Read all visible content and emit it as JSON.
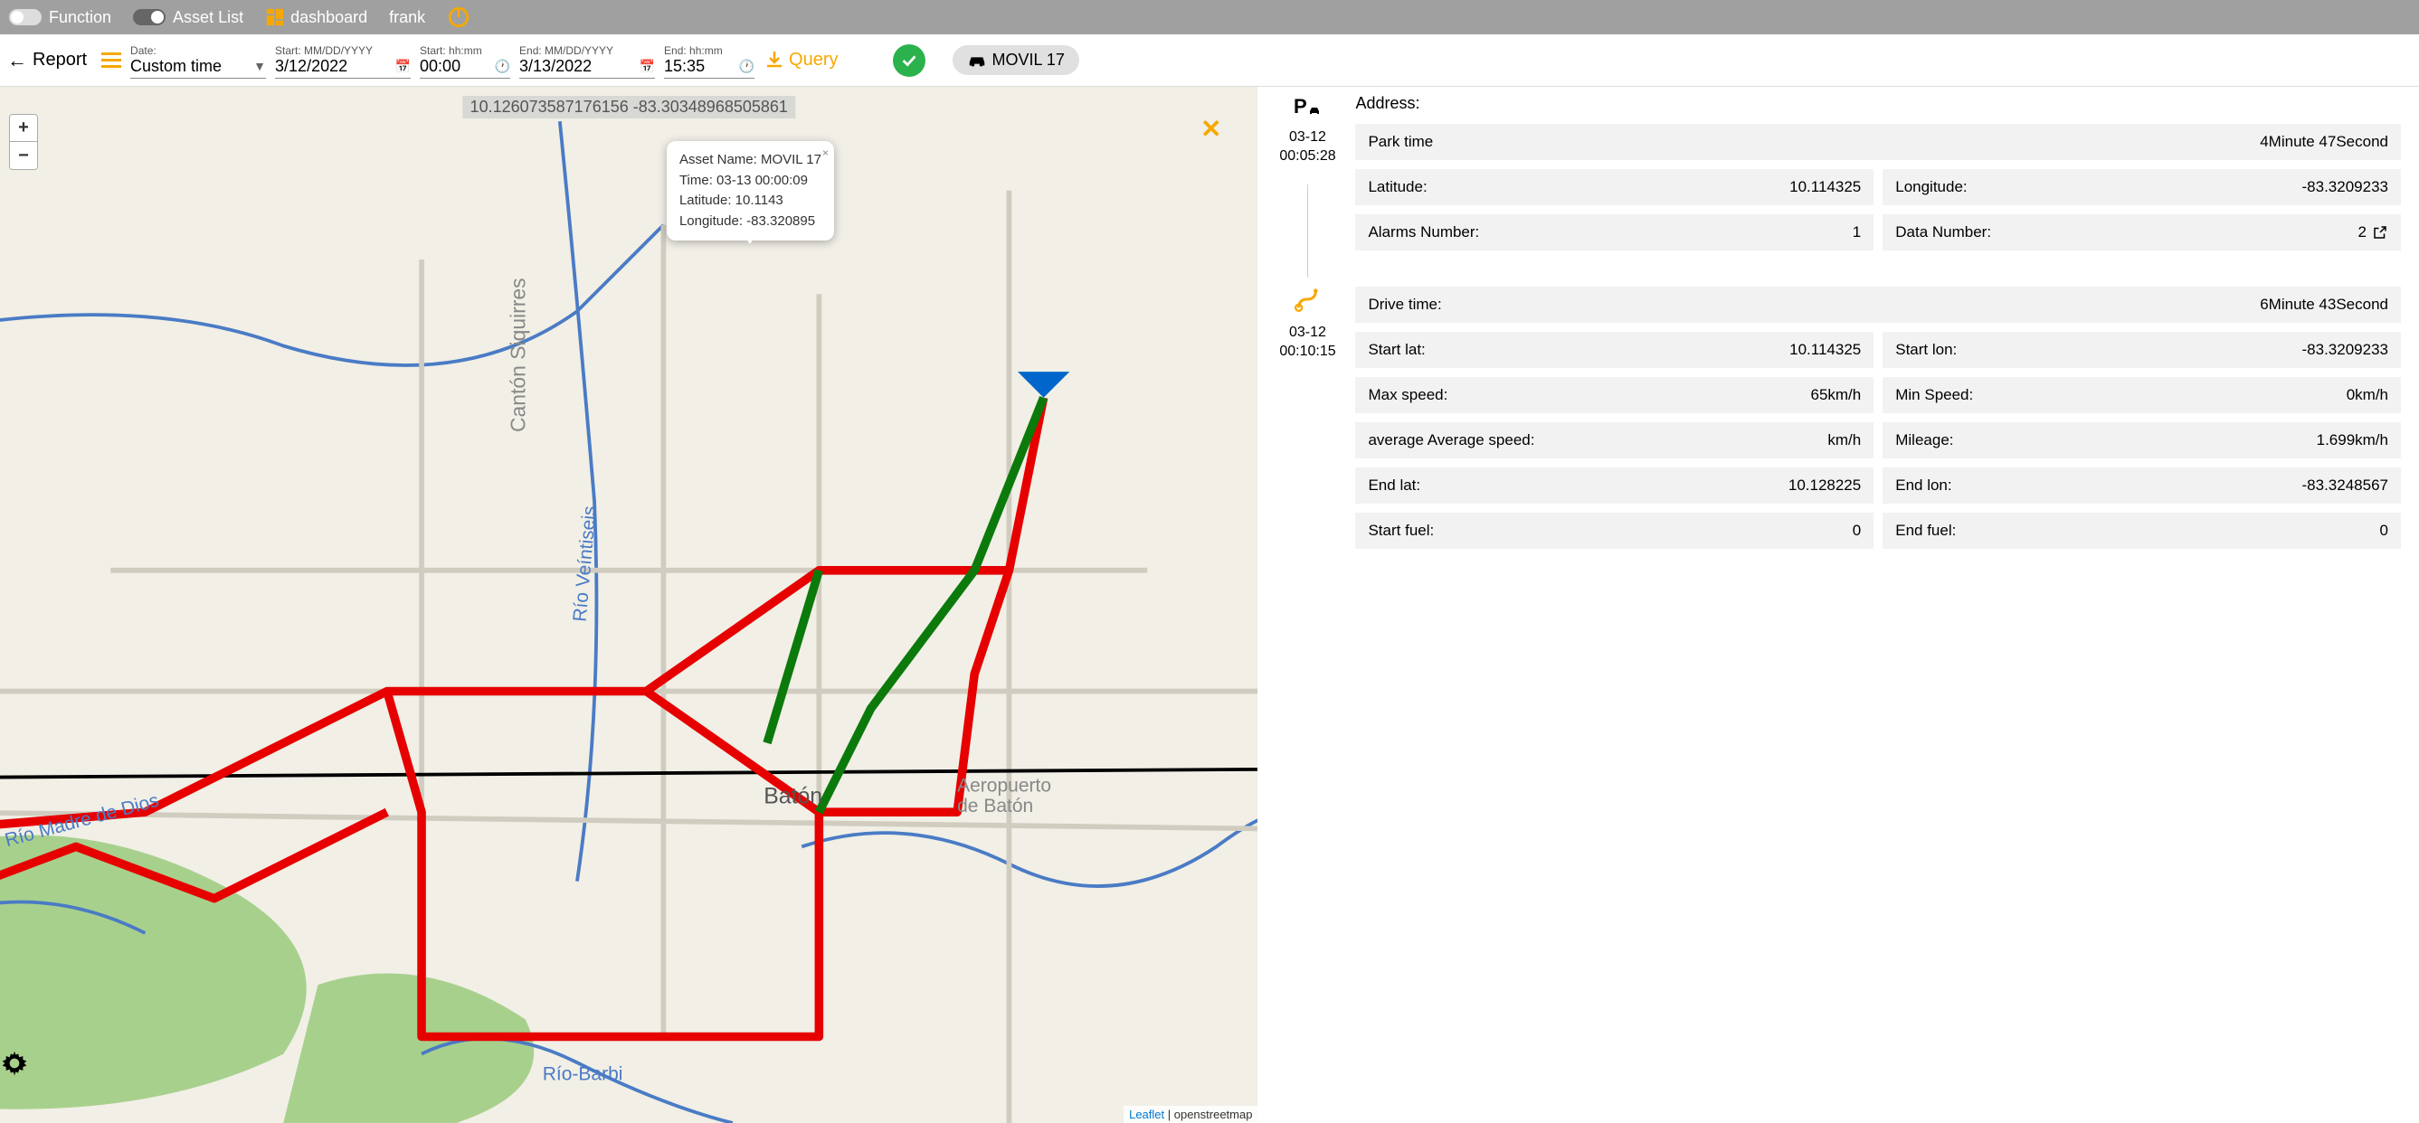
{
  "topbar": {
    "function_label": "Function",
    "assetlist_label": "Asset List",
    "dashboard_label": "dashboard",
    "username": "frank"
  },
  "filter": {
    "report_label": "Report",
    "date_label": "Date:",
    "date_value": "Custom time",
    "start_date_label": "Start: MM/DD/YYYY",
    "start_date_value": "3/12/2022",
    "start_time_label": "Start: hh:mm",
    "start_time_value": "00:00",
    "end_date_label": "End: MM/DD/YYYY",
    "end_date_value": "3/13/2022",
    "end_time_label": "End: hh:mm",
    "end_time_value": "15:35",
    "query_label": "Query",
    "asset_chip": "MOVIL 17"
  },
  "map": {
    "coords_text": "10.126073587176156  -83.30348968505861",
    "attribution_link": "Leaflet",
    "attribution_text": " | openstreetmap",
    "popup": {
      "l1": "Asset Name: MOVIL 17",
      "l2": "Time: 03-13 00:00:09",
      "l3": "Latitude: 10.1143",
      "l4": "Longitude: -83.320895"
    },
    "labels": {
      "baton": "Batón",
      "siquirres": "Cantón Siquirres",
      "rio1": "Río Veíntiseis",
      "aeropuerto": "Aeropuerto de Batón",
      "madre": "Río Madre de Dios",
      "barbi": "Río-Barbi"
    },
    "route_color": "#e60000",
    "route_color2": "#0b7a0b",
    "water_color": "#4a7bc5",
    "land_color": "#f1efe6",
    "green_color": "#a8d08d",
    "road_color": "#d0ccc0",
    "rail_color": "#000000"
  },
  "timeline": {
    "address_label": "Address:",
    "park": {
      "date": "03-12",
      "time": "00:05:28",
      "rows": [
        {
          "k": "Park time",
          "v": "4Minute 47Second",
          "w": "full"
        },
        {
          "k": "Latitude:",
          "v": "10.114325",
          "w": "half"
        },
        {
          "k": "Longitude:",
          "v": "-83.3209233",
          "w": "half"
        },
        {
          "k": "Alarms Number:",
          "v": "1",
          "w": "half"
        },
        {
          "k": "Data Number:",
          "v": "2",
          "w": "half",
          "link": true
        }
      ]
    },
    "drive": {
      "date": "03-12",
      "time": "00:10:15",
      "rows": [
        {
          "k": "Drive time:",
          "v": "6Minute 43Second",
          "w": "full"
        },
        {
          "k": "Start lat:",
          "v": "10.114325",
          "w": "half"
        },
        {
          "k": "Start lon:",
          "v": "-83.3209233",
          "w": "half"
        },
        {
          "k": "Max speed:",
          "v": "65km/h",
          "w": "half"
        },
        {
          "k": "Min Speed:",
          "v": "0km/h",
          "w": "half"
        },
        {
          "k": "average Average speed:",
          "v": "km/h",
          "w": "half"
        },
        {
          "k": "Mileage:",
          "v": "1.699km/h",
          "w": "half"
        },
        {
          "k": "End lat:",
          "v": "10.128225",
          "w": "half"
        },
        {
          "k": "End lon:",
          "v": "-83.3248567",
          "w": "half"
        },
        {
          "k": "Start fuel:",
          "v": "0",
          "w": "half"
        },
        {
          "k": "End fuel:",
          "v": "0",
          "w": "half"
        }
      ]
    }
  }
}
